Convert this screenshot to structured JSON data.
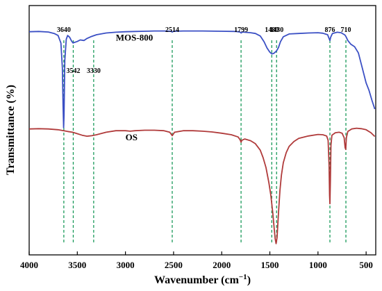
{
  "chart_data": {
    "type": "line",
    "xlabel": "Wavenumber (cm",
    "xlabel_sup": "−1",
    "xlabel_close": ")",
    "ylabel": "Transmittance (%)",
    "xlim": [
      4000,
      400
    ],
    "ylim": [
      0,
      100
    ],
    "x_ticks": [
      "4000",
      "3500",
      "3000",
      "2500",
      "2000",
      "1500",
      "1000",
      "500"
    ],
    "x_tick_values": [
      4000,
      3500,
      3000,
      2500,
      2000,
      1500,
      1000,
      500
    ],
    "grid": false,
    "reference_lines": {
      "color": "#1a9a5a",
      "style": "dashed",
      "positions": [
        3640,
        3542,
        3330,
        2514,
        1799,
        1480,
        1430,
        876,
        710
      ]
    },
    "peak_labels": [
      {
        "x": 3640,
        "text": "3640",
        "row": "top"
      },
      {
        "x": 3542,
        "text": "3542",
        "row": "mid"
      },
      {
        "x": 3330,
        "text": "3330",
        "row": "mid"
      },
      {
        "x": 2514,
        "text": "2514",
        "row": "top"
      },
      {
        "x": 1799,
        "text": "1799",
        "row": "top"
      },
      {
        "x": 1480,
        "text": "1480",
        "row": "top"
      },
      {
        "x": 1430,
        "text": "1430",
        "row": "top"
      },
      {
        "x": 876,
        "text": "876",
        "row": "top"
      },
      {
        "x": 710,
        "text": "710",
        "row": "top"
      }
    ],
    "series": [
      {
        "name": "MOS-800",
        "color": "#3a4fc4",
        "label_x": 3100,
        "label_y": 86,
        "points": [
          [
            4000,
            89.5
          ],
          [
            3900,
            89.6
          ],
          [
            3800,
            89.4
          ],
          [
            3740,
            88.8
          ],
          [
            3700,
            88.0
          ],
          [
            3670,
            85.0
          ],
          [
            3655,
            75.0
          ],
          [
            3648,
            60.0
          ],
          [
            3642,
            51.0
          ],
          [
            3638,
            56.0
          ],
          [
            3630,
            78.0
          ],
          [
            3615,
            86.5
          ],
          [
            3600,
            88.0
          ],
          [
            3580,
            87.3
          ],
          [
            3560,
            85.8
          ],
          [
            3545,
            85.0
          ],
          [
            3530,
            85.2
          ],
          [
            3500,
            85.6
          ],
          [
            3470,
            86.2
          ],
          [
            3430,
            86.0
          ],
          [
            3400,
            86.8
          ],
          [
            3360,
            87.5
          ],
          [
            3300,
            88.3
          ],
          [
            3200,
            89.0
          ],
          [
            3100,
            89.3
          ],
          [
            3000,
            89.5
          ],
          [
            2900,
            89.6
          ],
          [
            2800,
            89.7
          ],
          [
            2700,
            89.8
          ],
          [
            2600,
            89.8
          ],
          [
            2530,
            89.7
          ],
          [
            2514,
            89.4
          ],
          [
            2500,
            89.7
          ],
          [
            2400,
            89.8
          ],
          [
            2200,
            89.8
          ],
          [
            2000,
            89.7
          ],
          [
            1850,
            89.6
          ],
          [
            1810,
            89.4
          ],
          [
            1799,
            89.0
          ],
          [
            1785,
            89.4
          ],
          [
            1700,
            89.1
          ],
          [
            1650,
            88.8
          ],
          [
            1600,
            87.8
          ],
          [
            1560,
            85.5
          ],
          [
            1530,
            83.0
          ],
          [
            1500,
            81.3
          ],
          [
            1480,
            80.6
          ],
          [
            1460,
            80.8
          ],
          [
            1430,
            81.8
          ],
          [
            1410,
            83.2
          ],
          [
            1390,
            85.5
          ],
          [
            1360,
            87.5
          ],
          [
            1300,
            88.6
          ],
          [
            1200,
            88.8
          ],
          [
            1100,
            89.0
          ],
          [
            1000,
            89.1
          ],
          [
            950,
            88.9
          ],
          [
            900,
            88.3
          ],
          [
            885,
            86.8
          ],
          [
            876,
            86.0
          ],
          [
            868,
            87.3
          ],
          [
            850,
            88.8
          ],
          [
            800,
            89.3
          ],
          [
            760,
            89.1
          ],
          [
            720,
            88.2
          ],
          [
            710,
            87.6
          ],
          [
            690,
            86.0
          ],
          [
            660,
            84.5
          ],
          [
            620,
            83.5
          ],
          [
            580,
            81.0
          ],
          [
            540,
            75.0
          ],
          [
            500,
            69.0
          ],
          [
            470,
            66.0
          ],
          [
            440,
            62.0
          ],
          [
            410,
            58.5
          ]
        ]
      },
      {
        "name": "OS",
        "color": "#b03a3a",
        "label_x": 3000,
        "label_y": 46,
        "points": [
          [
            4000,
            50.5
          ],
          [
            3900,
            50.6
          ],
          [
            3800,
            50.5
          ],
          [
            3700,
            50.2
          ],
          [
            3640,
            49.8
          ],
          [
            3600,
            49.5
          ],
          [
            3550,
            49.2
          ],
          [
            3500,
            48.6
          ],
          [
            3450,
            48.0
          ],
          [
            3400,
            47.6
          ],
          [
            3350,
            47.8
          ],
          [
            3300,
            48.2
          ],
          [
            3200,
            49.2
          ],
          [
            3100,
            49.8
          ],
          [
            3000,
            49.8
          ],
          [
            2950,
            49.6
          ],
          [
            2900,
            49.8
          ],
          [
            2800,
            50.0
          ],
          [
            2700,
            50.0
          ],
          [
            2600,
            49.8
          ],
          [
            2540,
            49.2
          ],
          [
            2514,
            47.8
          ],
          [
            2490,
            49.2
          ],
          [
            2400,
            49.8
          ],
          [
            2300,
            49.8
          ],
          [
            2200,
            49.6
          ],
          [
            2100,
            49.3
          ],
          [
            2000,
            48.8
          ],
          [
            1900,
            48.2
          ],
          [
            1830,
            47.3
          ],
          [
            1810,
            46.2
          ],
          [
            1799,
            45.2
          ],
          [
            1790,
            46.0
          ],
          [
            1760,
            46.5
          ],
          [
            1700,
            45.8
          ],
          [
            1650,
            44.6
          ],
          [
            1600,
            42.0
          ],
          [
            1570,
            39.0
          ],
          [
            1540,
            35.0
          ],
          [
            1510,
            29.0
          ],
          [
            1490,
            24.0
          ],
          [
            1470,
            17.0
          ],
          [
            1455,
            10.5
          ],
          [
            1445,
            6.5
          ],
          [
            1435,
            4.5
          ],
          [
            1425,
            7.0
          ],
          [
            1410,
            17.0
          ],
          [
            1395,
            26.0
          ],
          [
            1380,
            32.0
          ],
          [
            1360,
            37.0
          ],
          [
            1330,
            41.0
          ],
          [
            1300,
            43.5
          ],
          [
            1250,
            45.5
          ],
          [
            1200,
            46.7
          ],
          [
            1100,
            47.7
          ],
          [
            1000,
            48.3
          ],
          [
            950,
            48.2
          ],
          [
            910,
            47.7
          ],
          [
            895,
            46.0
          ],
          [
            885,
            36.0
          ],
          [
            880,
            24.0
          ],
          [
            876,
            20.5
          ],
          [
            871,
            30.0
          ],
          [
            865,
            44.0
          ],
          [
            855,
            48.0
          ],
          [
            820,
            49.0
          ],
          [
            780,
            49.2
          ],
          [
            750,
            48.8
          ],
          [
            728,
            47.0
          ],
          [
            718,
            43.0
          ],
          [
            712,
            42.3
          ],
          [
            705,
            47.0
          ],
          [
            690,
            49.5
          ],
          [
            650,
            50.5
          ],
          [
            600,
            50.8
          ],
          [
            550,
            50.6
          ],
          [
            500,
            50.2
          ],
          [
            450,
            49.0
          ],
          [
            410,
            47.5
          ]
        ]
      }
    ]
  }
}
